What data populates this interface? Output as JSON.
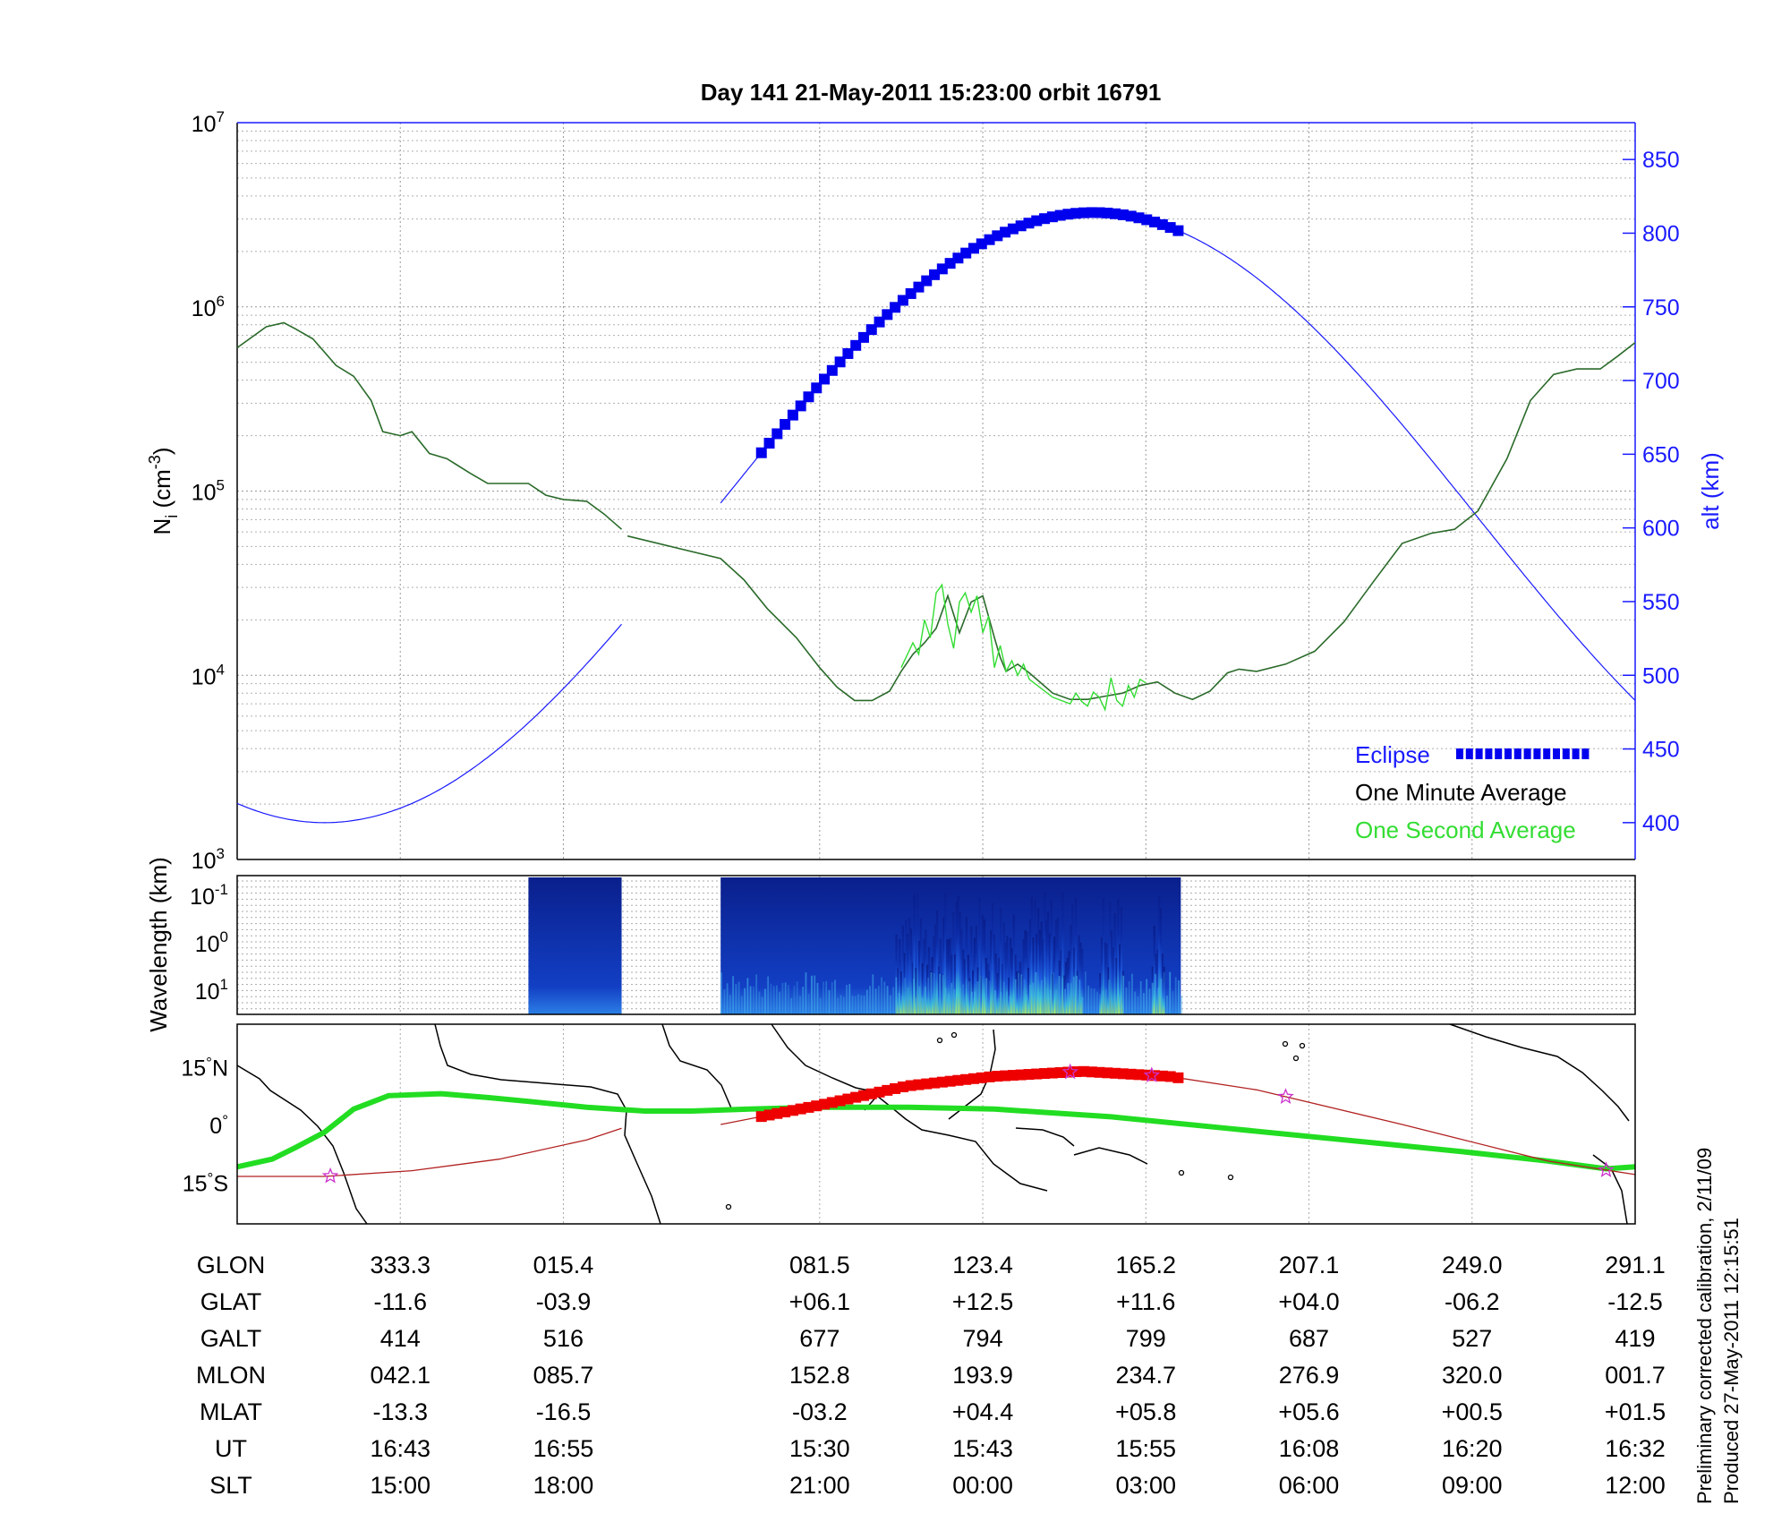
{
  "title": "Day 141  21-May-2011 15:23:00   orbit 16791",
  "footnote": {
    "line1": "Preliminary corrected calibration, 2/11/09",
    "line2": "Produced 27-May-2011 12:15:51"
  },
  "colors": {
    "density_avg": "#000000",
    "density_1s": "#33dd33",
    "altitude": "#1a1aff",
    "eclipse": "#0000ee",
    "ground_track": "#22dd22",
    "orbit_track": "#b22222",
    "orbit_eclipse": "#ee0000",
    "stars": "#cc33cc"
  },
  "chart_data": [
    {
      "type": "line",
      "panel": "density-altitude",
      "xlabel": "",
      "ylabel": "N_i (cm^-3)",
      "ylabel_parts": {
        "base": "N",
        "sub": "i",
        "unit_open": " (cm",
        "sup": "-3",
        "unit_close": ")"
      },
      "y_scale": "log",
      "ylim": [
        1000,
        10000000
      ],
      "yticks": [
        {
          "base": "10",
          "exp": "3"
        },
        {
          "base": "10",
          "exp": "4"
        },
        {
          "base": "10",
          "exp": "5"
        },
        {
          "base": "10",
          "exp": "6"
        },
        {
          "base": "10",
          "exp": "7"
        }
      ],
      "y2label": "alt (km)",
      "y2lim": [
        375,
        875
      ],
      "y2ticks": [
        "400",
        "450",
        "500",
        "550",
        "600",
        "650",
        "700",
        "750",
        "800",
        "850"
      ],
      "x_minutes": [
        0,
        240
      ],
      "grid": true,
      "legend_position": "bottom-right",
      "legend": {
        "eclipse": "Eclipse",
        "avg": "One Minute Average",
        "sec": "One Second Average"
      },
      "series": [
        {
          "name": "One Minute Average",
          "x": [
            0,
            5,
            8,
            10,
            13,
            17,
            20,
            23,
            25,
            28,
            30,
            33,
            36,
            40,
            43,
            47,
            50,
            53,
            56,
            60,
            63,
            66,
            67,
            83,
            87,
            91,
            96,
            100,
            103,
            106,
            109,
            112,
            114,
            116,
            118,
            120,
            122,
            124,
            126,
            128,
            130,
            131,
            132,
            134,
            136,
            140,
            143,
            146,
            149,
            152,
            155,
            158,
            161,
            164,
            167,
            170,
            172,
            175,
            180,
            185,
            190,
            195,
            200,
            205,
            209,
            213,
            218,
            222,
            226,
            230,
            234,
            237,
            240
          ],
          "y": [
            600000,
            780000,
            820000,
            760000,
            670000,
            480000,
            420000,
            310000,
            210000,
            200000,
            210000,
            160000,
            150000,
            125000,
            110000,
            110000,
            110000,
            95000,
            90000,
            88000,
            75000,
            62000,
            57000,
            43000,
            33000,
            23000,
            16000,
            11000,
            8600,
            7300,
            7300,
            8200,
            10500,
            13000,
            15000,
            18000,
            27000,
            17000,
            25000,
            27000,
            16000,
            12500,
            10500,
            11500,
            10300,
            8000,
            7400,
            7400,
            7700,
            8000,
            8800,
            9200,
            8000,
            7400,
            8200,
            10300,
            10800,
            10500,
            11500,
            13500,
            19500,
            32000,
            52000,
            59000,
            62000,
            78000,
            150000,
            310000,
            430000,
            460000,
            460000,
            540000,
            640000
          ]
        },
        {
          "name": "One Second Average",
          "x": [
            114,
            116,
            117,
            118,
            119,
            120,
            121,
            122,
            123,
            124,
            125,
            126,
            127,
            128,
            129,
            130,
            131,
            132,
            133,
            134,
            135,
            136,
            140,
            143,
            144,
            145,
            146,
            147,
            148,
            149,
            150,
            151,
            152,
            153,
            154,
            155,
            156
          ],
          "y": [
            11000,
            15000,
            13000,
            20000,
            16000,
            28000,
            31000,
            19000,
            14000,
            25000,
            28000,
            22000,
            27000,
            17000,
            21000,
            11000,
            14500,
            10500,
            12000,
            10000,
            11500,
            9500,
            7600,
            7000,
            8000,
            7200,
            6800,
            8100,
            7600,
            6500,
            9700,
            7300,
            6800,
            8800,
            7600,
            9500,
            9100
          ]
        },
        {
          "name": "alt (km)",
          "altitude_curve": {
            "min_km": 400,
            "min_x": 15,
            "max_km": 814,
            "max_x": 147
          },
          "plot_gap_x": [
            66,
            83
          ]
        },
        {
          "name": "Eclipse",
          "x_range": [
            90,
            162
          ]
        }
      ]
    },
    {
      "type": "heatmap",
      "panel": "wavelength-spectrogram",
      "ylabel": "Wavelength (km)",
      "y_scale": "log",
      "yticks": [
        {
          "base": "10",
          "exp": "-1"
        },
        {
          "base": "10",
          "exp": "0"
        },
        {
          "base": "10",
          "exp": "1"
        }
      ],
      "data_segments_x": [
        [
          50,
          66
        ],
        [
          83,
          162
        ]
      ],
      "intense_x_ranges": [
        [
          113,
          145
        ],
        [
          148,
          152
        ],
        [
          157,
          159
        ]
      ]
    },
    {
      "type": "line",
      "panel": "ground-track-map",
      "yticks": [
        {
          "value": "15",
          "hemi": "N"
        },
        {
          "value": "0",
          "hemi": ""
        },
        {
          "value": "15",
          "hemi": "S"
        }
      ],
      "series": [
        {
          "name": "ground_track_green",
          "x": [
            0,
            6,
            10,
            15,
            20,
            26,
            35,
            43,
            50,
            60,
            70,
            78,
            88,
            100,
            115,
            130,
            150,
            170,
            190,
            210,
            225,
            235,
            240
          ],
          "y": [
            -11,
            -9,
            -6,
            -2,
            4,
            7.5,
            8,
            7,
            6,
            4.5,
            3.5,
            3.5,
            4,
            4.5,
            4.5,
            4,
            2,
            -1,
            -4,
            -7,
            -9.5,
            -11.5,
            -11
          ]
        },
        {
          "name": "orbit_track_red",
          "x": [
            0,
            15,
            30,
            45,
            60,
            66,
            83,
            100,
            115,
            130,
            145,
            160,
            175,
            200,
            225,
            240
          ],
          "y": [
            -13.5,
            -13.5,
            -12,
            -9,
            -4,
            -1,
            0,
            5,
            10,
            12.5,
            13.8,
            12.5,
            9,
            0,
            -9.5,
            -13
          ]
        },
        {
          "name": "eclipse_track_red",
          "x_range": [
            90,
            162
          ]
        }
      ],
      "stars_x": [
        16,
        143,
        157,
        180,
        235
      ]
    }
  ],
  "table": {
    "labels": [
      "GLON",
      "GLAT",
      "GALT",
      "MLON",
      "MLAT",
      "UT",
      "SLT"
    ],
    "columns": [
      {
        "x": 28,
        "values": [
          "333.3",
          "-11.6",
          "414",
          "042.1",
          "-13.3",
          "16:43",
          "15:00"
        ]
      },
      {
        "x": 56,
        "values": [
          "015.4",
          "-03.9",
          "516",
          "085.7",
          "-16.5",
          "16:55",
          "18:00"
        ]
      },
      {
        "x": 100,
        "values": [
          "081.5",
          "+06.1",
          "677",
          "152.8",
          "-03.2",
          "15:30",
          "21:00"
        ]
      },
      {
        "x": 128,
        "values": [
          "123.4",
          "+12.5",
          "794",
          "193.9",
          "+04.4",
          "15:43",
          "00:00"
        ]
      },
      {
        "x": 156,
        "values": [
          "165.2",
          "+11.6",
          "799",
          "234.7",
          "+05.8",
          "15:55",
          "03:00"
        ]
      },
      {
        "x": 184,
        "values": [
          "207.1",
          "+04.0",
          "687",
          "276.9",
          "+05.6",
          "16:08",
          "06:00"
        ]
      },
      {
        "x": 212,
        "values": [
          "249.0",
          "-06.2",
          "527",
          "320.0",
          "+00.5",
          "16:20",
          "09:00"
        ]
      },
      {
        "x": 240,
        "values": [
          "291.1",
          "-12.5",
          "419",
          "001.7",
          "+01.5",
          "16:32",
          "12:00"
        ]
      }
    ]
  }
}
